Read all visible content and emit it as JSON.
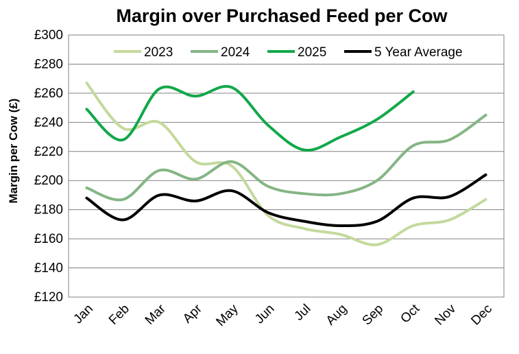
{
  "chart_data": {
    "type": "line",
    "title": "Margin over Purchased Feed per Cow",
    "xlabel": "",
    "ylabel": "Margin per Cow (£)",
    "categories": [
      "Jan",
      "Feb",
      "Mar",
      "Apr",
      "May",
      "Jun",
      "Jul",
      "Aug",
      "Sep",
      "Oct",
      "Nov",
      "Dec"
    ],
    "ylim": [
      120,
      300
    ],
    "yticks": [
      120,
      140,
      160,
      180,
      200,
      220,
      240,
      260,
      280,
      300
    ],
    "ytick_labels": [
      "£120",
      "£140",
      "£160",
      "£180",
      "£200",
      "£220",
      "£240",
      "£260",
      "£280",
      "£300"
    ],
    "grid": "horizontal",
    "legend_position": "top",
    "series": [
      {
        "name": "2023",
        "color": "#c4d99c",
        "values": [
          267,
          236,
          240,
          213,
          210,
          176,
          167,
          163,
          156,
          169,
          173,
          187
        ]
      },
      {
        "name": "2024",
        "color": "#85b585",
        "values": [
          195,
          187,
          207,
          201,
          213,
          196,
          191,
          191,
          200,
          224,
          228,
          245
        ]
      },
      {
        "name": "2025",
        "color": "#12a84a",
        "values": [
          249,
          228,
          263,
          258,
          264,
          238,
          221,
          230,
          242,
          261,
          null,
          null
        ]
      },
      {
        "name": "5 Year Average",
        "color": "#000000",
        "values": [
          188,
          173,
          190,
          186,
          193,
          178,
          172,
          169,
          172,
          188,
          189,
          204
        ]
      }
    ]
  }
}
